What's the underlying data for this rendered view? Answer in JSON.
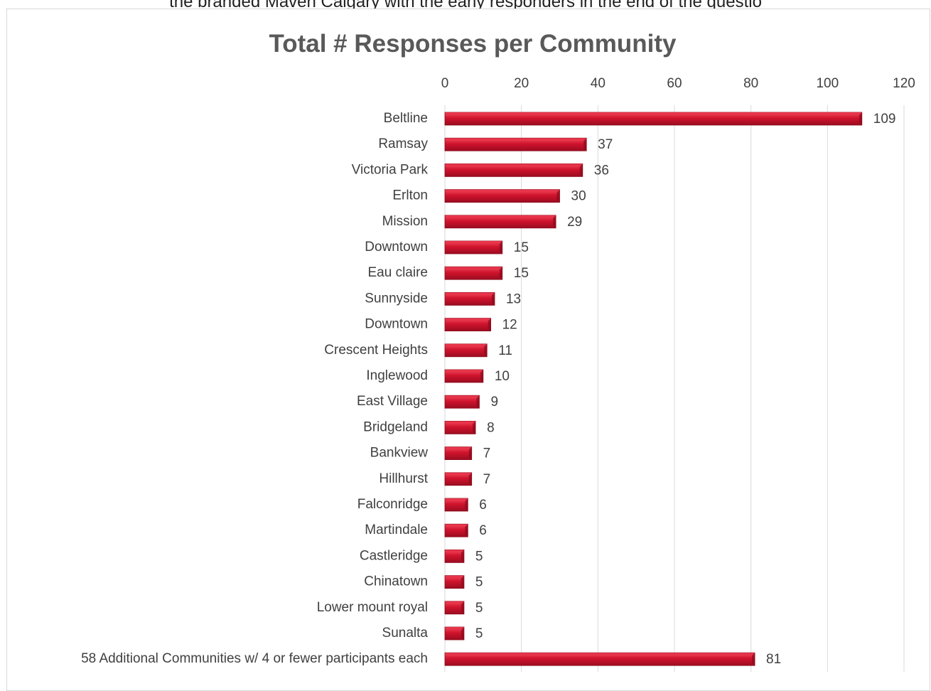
{
  "page": {
    "top_text": "the branded Maven Calgary with the early responders in the end of the questio"
  },
  "colors": {
    "bar_fill": "#c8102e",
    "bar_top": "#e8344a",
    "bar_edge": "#8a0a1c",
    "grid": "#d9d9d9",
    "text": "#404040",
    "title": "#595959"
  },
  "chart_data": {
    "type": "bar",
    "orientation": "horizontal",
    "title": "Total # Responses per Community",
    "xlabel": "",
    "ylabel": "",
    "xlim": [
      0,
      120
    ],
    "x_ticks": [
      "0",
      "20",
      "40",
      "60",
      "80",
      "100",
      "120"
    ],
    "x_tick_values": [
      0,
      20,
      40,
      60,
      80,
      100,
      120
    ],
    "x_axis_position": "top",
    "grid": true,
    "legend": "none",
    "categories": [
      "Beltline",
      "Ramsay",
      "Victoria Park",
      "Erlton",
      "Mission",
      "Downtown",
      "Eau claire",
      "Sunnyside",
      "Downtown",
      "Crescent Heights",
      "Inglewood",
      "East Village",
      "Bridgeland",
      "Bankview",
      "Hillhurst",
      "Falconridge",
      "Martindale",
      "Castleridge",
      "Chinatown",
      "Lower mount royal",
      "Sunalta",
      "58 Additional Communities w/ 4 or fewer participants each"
    ],
    "values": [
      109,
      37,
      36,
      30,
      29,
      15,
      15,
      13,
      12,
      11,
      10,
      9,
      8,
      7,
      7,
      6,
      6,
      5,
      5,
      5,
      5,
      81
    ],
    "data_labels": [
      "109",
      "37",
      "36",
      "30",
      "29",
      "15",
      "15",
      "13",
      "12",
      "11",
      "10",
      "9",
      "8",
      "7",
      "7",
      "6",
      "6",
      "5",
      "5",
      "5",
      "5",
      "81"
    ]
  }
}
